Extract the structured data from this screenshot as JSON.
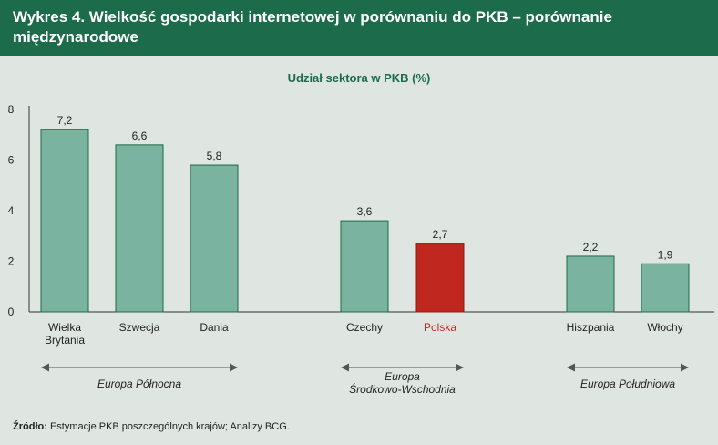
{
  "header": {
    "title": "Wykres 4. Wielkość gospodarki internetowej w porównaniu do PKB – porównanie międzynarodowe"
  },
  "chart_data": {
    "type": "bar",
    "title": "Udział sektora w PKB (%)",
    "categories": [
      "Wielka Brytania",
      "Szwecja",
      "Dania",
      "Czechy",
      "Polska",
      "Hiszpania",
      "Włochy"
    ],
    "category_label_lines": [
      [
        "Wielka",
        "Brytania"
      ],
      [
        "Szwecja"
      ],
      [
        "Dania"
      ],
      [
        "Czechy"
      ],
      [
        "Polska"
      ],
      [
        "Hiszpania"
      ],
      [
        "Włochy"
      ]
    ],
    "values": [
      7.2,
      6.6,
      5.8,
      3.6,
      2.7,
      2.2,
      1.9
    ],
    "value_labels": [
      "7,2",
      "6,6",
      "5,8",
      "3,6",
      "2,7",
      "2,2",
      "1,9"
    ],
    "yticks": [
      "0",
      "2",
      "4",
      "6",
      "8"
    ],
    "ylim": [
      0,
      8
    ],
    "grid": false,
    "highlight": "Polska",
    "groups": [
      {
        "label_lines": [
          "Europa Północna"
        ],
        "members": [
          "Wielka Brytania",
          "Szwecja",
          "Dania"
        ]
      },
      {
        "label_lines": [
          "Europa",
          "Środkowo-Wschodnia"
        ],
        "members": [
          "Czechy",
          "Polska"
        ]
      },
      {
        "label_lines": [
          "Europa Południowa"
        ],
        "members": [
          "Hiszpania",
          "Włochy"
        ]
      }
    ],
    "colors": {
      "bar": "#7ab3a0",
      "bar_edge": "#1c6b4a",
      "highlight": "#c0281f",
      "axis": "#333333",
      "arrow": "#555555"
    }
  },
  "footer": {
    "source_label": "Źródło:",
    "source_text": " Estymacje PKB poszczególnych krajów; Analizy BCG."
  }
}
